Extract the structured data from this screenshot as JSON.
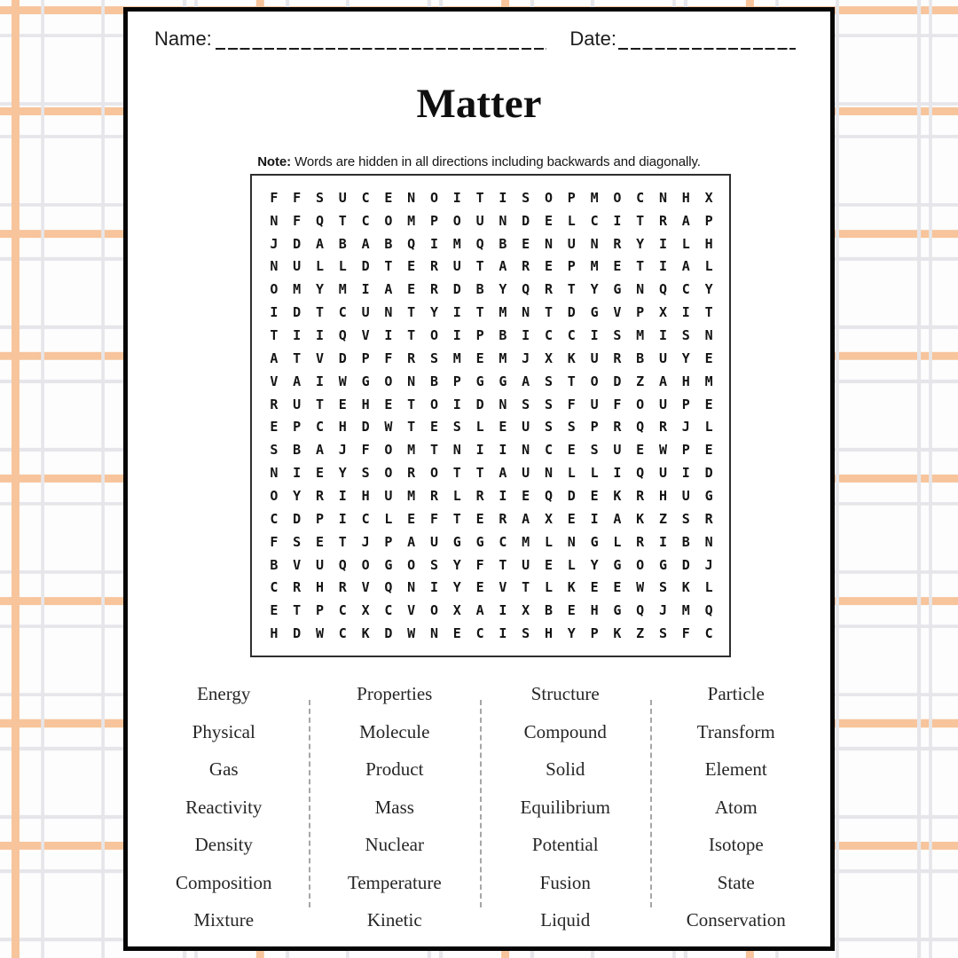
{
  "header": {
    "name_label": "Name:",
    "date_label": "Date:"
  },
  "title": "Matter",
  "note": {
    "label": "Note:",
    "text": " Words are hidden in all directions including backwards and diagonally."
  },
  "puzzle": {
    "rows": 20,
    "cols": 20,
    "grid": [
      "FFSUCENOITISOPMOCNHX",
      "NFQTCOMPOUNDELCITRAP",
      "JDABABQIMQBENUNRYILH",
      "NULLDTERUTAREPMETIAL",
      "OMYMIAERDBYQRTYGNQCY",
      "IDTCUNTYITMNTDGVPXIT",
      "TIIQVITOIPBICCISMISN",
      "ATVDPFRSMEMJXKURBUYE",
      "VAIWGONBPGGASTODZAHM",
      "RUTEHETOIDNSSFUFOUPE",
      "EPCHDWTESLEUSSPRQRJL",
      "SBAJFOMTNIINCESUEWPE",
      "NIEYSOROTTAUNLLIQUID",
      "OYRIHUMRLRIEQDEKRHUG",
      "CDPICLEFTERAXEIAKZSR",
      "FSETJPAUGGCMLNGLRIBN",
      "BVUQOGOSYFTUELYGOGDJ",
      "CRHRVQNIYEVTLKEEWSKL",
      "ETPCXCVOXAIXBEHGQJMQ",
      "HDWCKDWNECISHYPKZSFC"
    ]
  },
  "word_list": {
    "columns": [
      [
        "Energy",
        "Physical",
        "Gas",
        "Reactivity",
        "Density",
        "Composition",
        "Mixture"
      ],
      [
        "Properties",
        "Molecule",
        "Product",
        "Mass",
        "Nuclear",
        "Temperature",
        "Kinetic"
      ],
      [
        "Structure",
        "Compound",
        "Solid",
        "Equilibrium",
        "Potential",
        "Fusion",
        "Liquid"
      ],
      [
        "Particle",
        "Transform",
        "Element",
        "Atom",
        "Isotope",
        "State",
        "Conservation"
      ]
    ]
  },
  "colors": {
    "plaid_orange": "#f7c49b",
    "plaid_gray": "#e6e6ea",
    "page_border": "#060606",
    "text": "#1a1a1a"
  }
}
